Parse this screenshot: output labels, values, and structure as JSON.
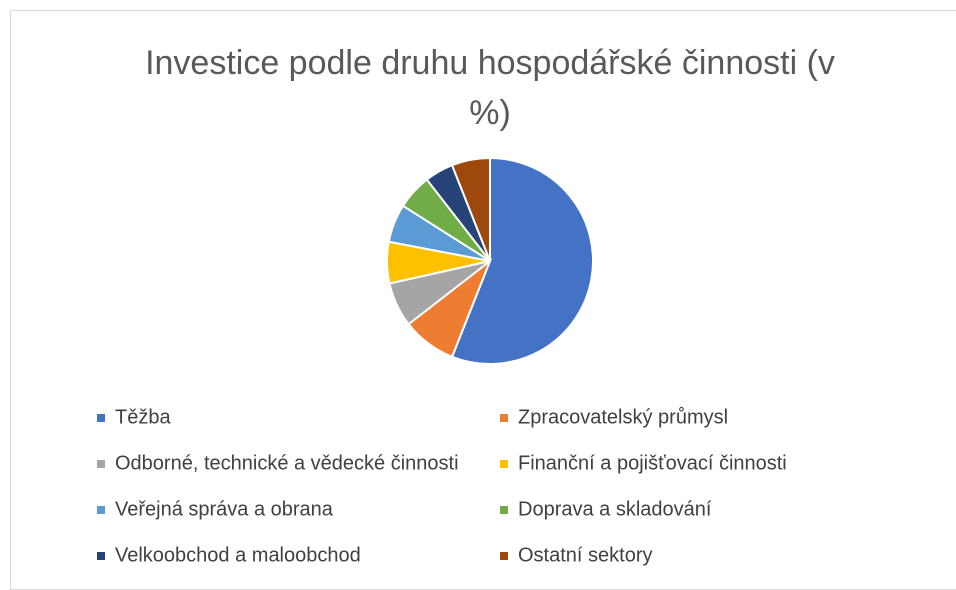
{
  "chart_data": {
    "type": "pie",
    "title": "Investice podle druhu hospodářské činnosti (v %)",
    "categories": [
      "Těžba",
      "Zpracovatelský průmysl",
      "Odborné, technické a vědecké činnosti",
      "Finanční a pojišťovací činnosti",
      "Veřejná správa a obrana",
      "Doprava a skladování",
      "Velkoobchod a maloobchod",
      "Ostatní sektory"
    ],
    "values": [
      56,
      8.5,
      7,
      6.5,
      6,
      5.5,
      4.5,
      6
    ],
    "colors": [
      "#4472c4",
      "#ed7d31",
      "#a5a5a5",
      "#ffc000",
      "#5b9bd5",
      "#70ad47",
      "#264478",
      "#9e480e"
    ],
    "legend": "bottom"
  }
}
